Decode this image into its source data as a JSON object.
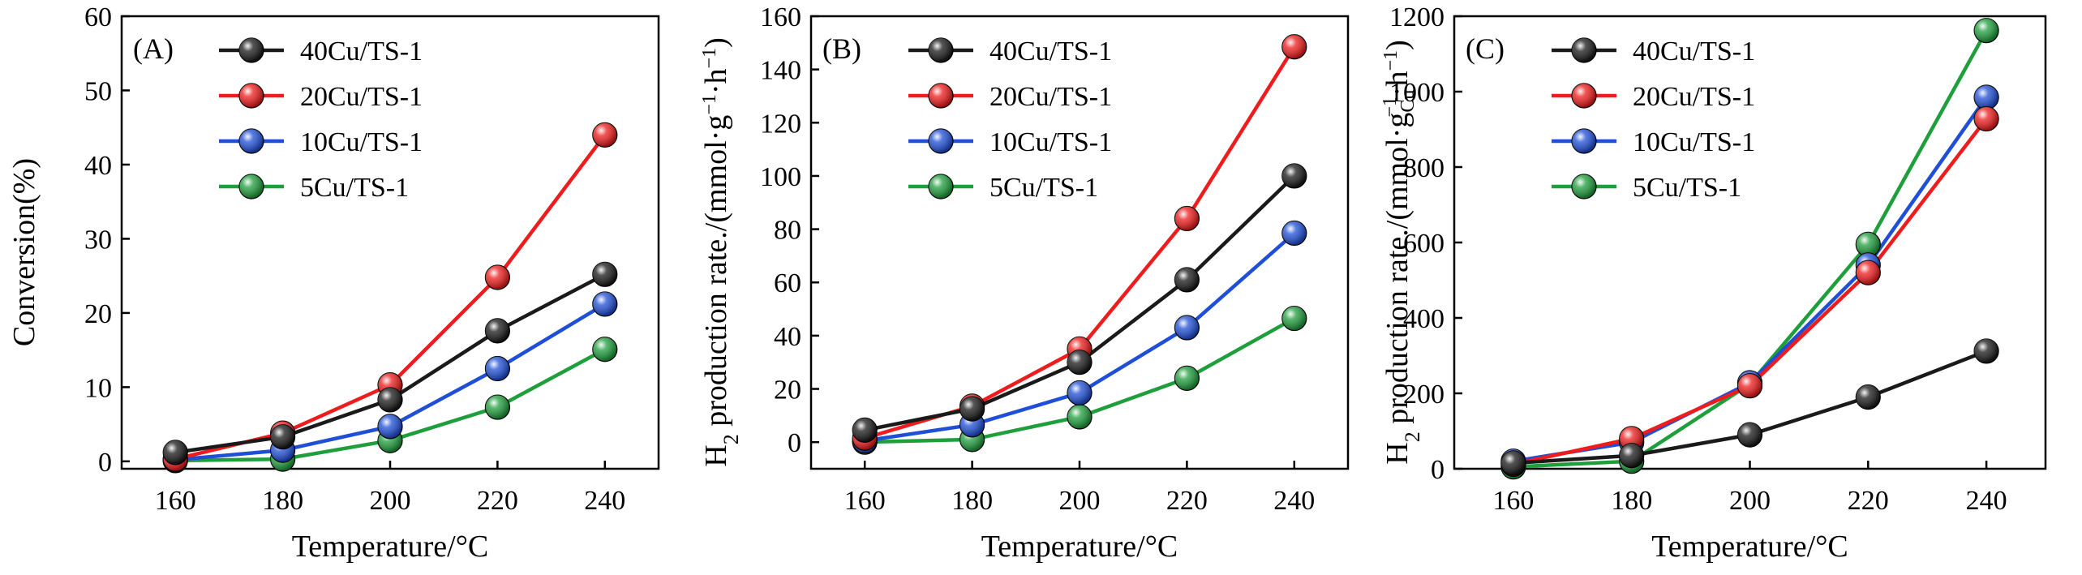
{
  "figure": {
    "colors": {
      "40Cu/TS-1": "#1a1a1a",
      "20Cu/TS-1": "#ee1c1c",
      "10Cu/TS-1": "#1f4fd6",
      "5Cu/TS-1": "#1f9e3c"
    }
  },
  "chart_data": [
    {
      "type": "line",
      "panel_label": "(A)",
      "xlabel": "Temperature/°C",
      "ylabel": "Conversion(%)",
      "x": [
        160,
        180,
        200,
        220,
        240
      ],
      "xlim": [
        150,
        250
      ],
      "ylim": [
        -1,
        60
      ],
      "xticks": [
        160,
        180,
        200,
        220,
        240
      ],
      "yticks": [
        0,
        10,
        20,
        30,
        40,
        50,
        60
      ],
      "legend_position": "top-left",
      "series": [
        {
          "name": "40Cu/TS-1",
          "values": [
            1.2,
            3.3,
            8.3,
            17.6,
            25.2
          ]
        },
        {
          "name": "20Cu/TS-1",
          "values": [
            0.3,
            3.8,
            10.3,
            24.8,
            44.0
          ]
        },
        {
          "name": "10Cu/TS-1",
          "values": [
            0.2,
            1.5,
            4.7,
            12.5,
            21.2
          ]
        },
        {
          "name": "5Cu/TS-1",
          "values": [
            0.1,
            0.3,
            2.8,
            7.3,
            15.1
          ]
        }
      ]
    },
    {
      "type": "line",
      "panel_label": "(B)",
      "xlabel": "Temperature/°C",
      "ylabel_main": "H",
      "ylabel_sub": "2",
      "ylabel_rest": " production rate./(mmol·g",
      "ylabel_sup1": "−1",
      "ylabel_mid": "·h",
      "ylabel_sup2": "−1",
      "ylabel_end": ")",
      "x": [
        160,
        180,
        200,
        220,
        240
      ],
      "xlim": [
        150,
        250
      ],
      "ylim": [
        -10,
        160
      ],
      "xticks": [
        160,
        180,
        200,
        220,
        240
      ],
      "yticks": [
        0,
        20,
        40,
        60,
        80,
        100,
        120,
        140,
        160
      ],
      "legend_position": "top-left",
      "series": [
        {
          "name": "40Cu/TS-1",
          "values": [
            4.5,
            12.5,
            30.0,
            61.0,
            100.0
          ]
        },
        {
          "name": "20Cu/TS-1",
          "values": [
            1.5,
            13.5,
            35.0,
            84.0,
            148.5
          ]
        },
        {
          "name": "10Cu/TS-1",
          "values": [
            0.5,
            6.5,
            18.5,
            43.0,
            78.5
          ]
        },
        {
          "name": "5Cu/TS-1",
          "values": [
            0.0,
            1.0,
            9.5,
            24.0,
            46.5
          ]
        }
      ]
    },
    {
      "type": "line",
      "panel_label": "(C)",
      "xlabel": "Temperature/°C",
      "ylabel_main": "H",
      "ylabel_sub": "2",
      "ylabel_rest": " production rate./(mmol·g",
      "ylabel_sub2": "Cu",
      "ylabel_sup1": "−1",
      "ylabel_mid": "·h",
      "ylabel_sup2": "−1",
      "ylabel_end": ")",
      "x": [
        160,
        180,
        200,
        220,
        240
      ],
      "xlim": [
        150,
        250
      ],
      "ylim": [
        0,
        1200
      ],
      "xticks": [
        160,
        180,
        200,
        220,
        240
      ],
      "yticks": [
        0,
        200,
        400,
        600,
        800,
        1000,
        1200
      ],
      "legend_position": "top-left",
      "series": [
        {
          "name": "40Cu/TS-1",
          "values": [
            15,
            35,
            90,
            190,
            312
          ]
        },
        {
          "name": "20Cu/TS-1",
          "values": [
            12,
            80,
            220,
            520,
            928
          ]
        },
        {
          "name": "10Cu/TS-1",
          "values": [
            20,
            70,
            228,
            540,
            985
          ]
        },
        {
          "name": "5Cu/TS-1",
          "values": [
            5,
            20,
            225,
            595,
            1162
          ]
        }
      ]
    }
  ]
}
